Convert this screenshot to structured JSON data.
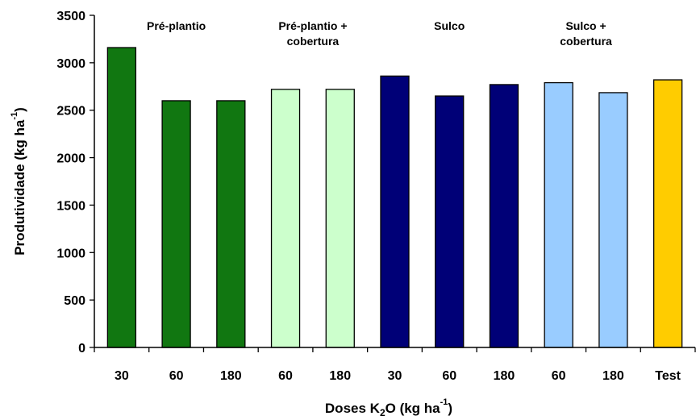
{
  "chart_data": {
    "type": "bar",
    "xlabel_main": "Doses K",
    "xlabel_sub": "2",
    "xlabel_mid": "O (kg ha",
    "xlabel_sup": "-1",
    "xlabel_end": ")",
    "ylabel_main": "Produtividade (kg ha",
    "ylabel_sup": "-1",
    "ylabel_end": ")",
    "ylim": [
      0,
      3500
    ],
    "yticks": [
      "0",
      "500",
      "1000",
      "1500",
      "2000",
      "2500",
      "3000",
      "3500"
    ],
    "grid": false,
    "categories": [
      "30",
      "60",
      "180",
      "60",
      "180",
      "30",
      "60",
      "180",
      "60",
      "180",
      "Test"
    ],
    "values": [
      3160,
      2600,
      2600,
      2720,
      2720,
      2860,
      2650,
      2770,
      2790,
      2685,
      2820
    ],
    "colors": [
      "#117711",
      "#117711",
      "#117711",
      "#ccffcc",
      "#ccffcc",
      "#000077",
      "#000077",
      "#000077",
      "#99ccff",
      "#99ccff",
      "#ffcc00"
    ],
    "groups": [
      {
        "lines": [
          "Pré-plantio"
        ]
      },
      {
        "lines": [
          "Pré-plantio +",
          "cobertura"
        ]
      },
      {
        "lines": [
          "Sulco"
        ]
      },
      {
        "lines": [
          "Sulco +",
          "cobertura"
        ]
      }
    ]
  }
}
